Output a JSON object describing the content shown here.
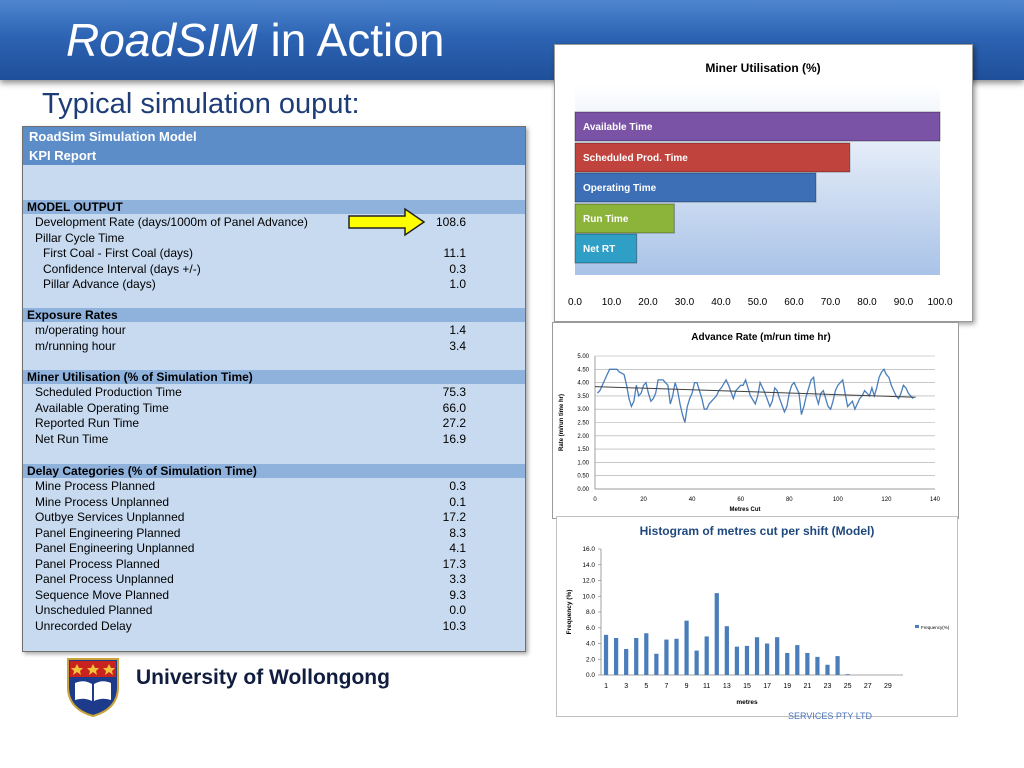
{
  "slide": {
    "title_emph": "RoadSIM",
    "title_rest": " in Action",
    "subtitle": "Typical simulation ouput:",
    "university": "University of Wollongong",
    "footer_note": "SERVICES PTY LTD"
  },
  "kpi": {
    "header1": "RoadSim Simulation Model",
    "header2": "KPI Report",
    "sections": [
      {
        "title": "MODEL OUTPUT",
        "rows": [
          {
            "label": "Development Rate (days/1000m of Panel Advance)",
            "value": "108.6",
            "indent": 1
          },
          {
            "label": "Pillar Cycle Time",
            "value": "",
            "indent": 1
          },
          {
            "label": "First Coal - First Coal (days)",
            "value": "11.1",
            "indent": 2
          },
          {
            "label": "Confidence Interval (days +/-)",
            "value": "0.3",
            "indent": 2
          },
          {
            "label": "Pillar Advance (days)",
            "value": "1.0",
            "indent": 2
          }
        ]
      },
      {
        "title": "Exposure Rates",
        "rows": [
          {
            "label": "m/operating hour",
            "value": "1.4",
            "indent": 1
          },
          {
            "label": "m/running hour",
            "value": "3.4",
            "indent": 1
          }
        ]
      },
      {
        "title": "Miner Utilisation (% of Simulation Time)",
        "rows": [
          {
            "label": "Scheduled Production Time",
            "value": "75.3",
            "indent": 1
          },
          {
            "label": "Available Operating Time",
            "value": "66.0",
            "indent": 1
          },
          {
            "label": "Reported Run Time",
            "value": "27.2",
            "indent": 1
          },
          {
            "label": "Net Run Time",
            "value": "16.9",
            "indent": 1
          }
        ]
      },
      {
        "title": "Delay Categories (% of Simulation Time)",
        "rows": [
          {
            "label": "Mine Process Planned",
            "value": "0.3",
            "indent": 1
          },
          {
            "label": "Mine Process Unplanned",
            "value": "0.1",
            "indent": 1
          },
          {
            "label": "Outbye Services Unplanned",
            "value": "17.2",
            "indent": 1
          },
          {
            "label": "Panel Engineering Planned",
            "value": "8.3",
            "indent": 1
          },
          {
            "label": "Panel Engineering Unplanned",
            "value": "4.1",
            "indent": 1
          },
          {
            "label": "Panel Process Planned",
            "value": "17.3",
            "indent": 1
          },
          {
            "label": "Panel Process Unplanned",
            "value": "3.3",
            "indent": 1
          },
          {
            "label": "Sequence Move Planned",
            "value": "9.3",
            "indent": 1
          },
          {
            "label": "Unscheduled Planned",
            "value": "0.0",
            "indent": 1
          },
          {
            "label": "Unrecorded Delay",
            "value": "10.3",
            "indent": 1
          }
        ]
      }
    ]
  },
  "colors": {
    "title_band": "#2d64b4",
    "kpi_bg": "#c7daf0",
    "kpi_header": "#5d8dc8",
    "kpi_section": "#8fb2dd",
    "arrow": "#ffff00",
    "line_series": "#4a7ebb",
    "trend": "#404040",
    "hist_bar": "#4a7ebb",
    "hist_title": "#1f497d"
  },
  "chart_data": [
    {
      "type": "bar",
      "orientation": "horizontal",
      "title": "Miner Utilisation (%)",
      "categories": [
        "Available Time",
        "Scheduled Prod. Time",
        "Operating Time",
        "Run Time",
        "Net RT"
      ],
      "values": [
        100.0,
        75.3,
        66.0,
        27.2,
        16.9
      ],
      "bar_colors": [
        "#7b53a6",
        "#c0433e",
        "#3d6fb6",
        "#8cb43b",
        "#2f9fc6"
      ],
      "x_ticks": [
        "0.0",
        "10.0",
        "20.0",
        "30.0",
        "40.0",
        "50.0",
        "60.0",
        "70.0",
        "80.0",
        "90.0",
        "100.0"
      ],
      "xlim": [
        0,
        100
      ],
      "xlabel": "",
      "ylabel": ""
    },
    {
      "type": "line",
      "title": "Advance Rate (m/run time hr)",
      "xlabel": "Metres Cut",
      "ylabel": "Rate (m/run time hr)",
      "xlim": [
        0,
        140
      ],
      "ylim": [
        0,
        5
      ],
      "x_ticks": [
        "0",
        "20",
        "40",
        "60",
        "80",
        "100",
        "120",
        "140"
      ],
      "y_ticks": [
        "0.00",
        "0.50",
        "1.00",
        "1.50",
        "2.00",
        "2.50",
        "3.00",
        "3.50",
        "4.00",
        "4.50",
        "5.00"
      ],
      "grid": true,
      "series": [
        {
          "x": [
            1,
            2,
            3,
            5,
            6,
            7,
            9,
            10,
            12,
            13,
            14,
            15,
            16,
            17,
            18,
            19,
            20,
            21,
            22,
            23,
            24,
            25,
            26,
            28,
            30,
            31,
            32,
            33,
            34,
            35,
            36,
            37,
            38,
            39,
            40,
            41,
            42,
            43,
            44,
            45,
            46,
            47,
            48,
            50,
            51,
            52,
            54,
            55,
            57,
            58,
            60,
            61,
            62,
            63,
            64,
            66,
            67,
            68,
            69,
            70,
            72,
            73,
            74,
            75,
            76,
            78,
            79,
            80,
            81,
            82,
            84,
            85,
            86,
            87,
            88,
            89,
            90,
            91,
            92,
            93,
            94,
            95,
            96,
            97,
            98,
            99,
            100,
            101,
            102,
            103,
            104,
            105,
            106,
            107,
            108,
            109,
            110,
            111,
            112,
            113,
            114,
            115,
            116,
            117,
            118,
            119,
            120,
            121,
            122,
            123,
            124,
            125,
            126,
            127,
            128,
            129,
            130,
            131
          ],
          "y": [
            3.6,
            3.7,
            3.9,
            4.3,
            4.5,
            4.5,
            4.5,
            4.4,
            4.3,
            3.9,
            3.4,
            3.1,
            3.3,
            3.9,
            3.5,
            3.6,
            3.9,
            4.0,
            3.6,
            3.3,
            3.4,
            3.6,
            4.1,
            4.1,
            3.9,
            3.2,
            3.5,
            4.0,
            3.7,
            3.2,
            2.8,
            2.5,
            3.1,
            3.4,
            3.6,
            4.0,
            4.0,
            3.7,
            3.4,
            3.0,
            3.0,
            3.2,
            3.3,
            3.5,
            3.7,
            3.8,
            4.1,
            3.9,
            3.4,
            3.7,
            3.9,
            3.9,
            4.1,
            3.8,
            3.5,
            3.2,
            3.5,
            4.0,
            3.8,
            3.6,
            3.1,
            3.3,
            3.8,
            3.7,
            3.4,
            2.9,
            3.1,
            3.6,
            3.9,
            4.0,
            3.6,
            2.8,
            3.1,
            3.5,
            3.8,
            4.1,
            4.2,
            3.5,
            3.2,
            3.6,
            3.7,
            3.4,
            3.1,
            3.0,
            3.3,
            3.7,
            3.9,
            4.0,
            4.1,
            3.6,
            3.1,
            3.2,
            3.3,
            3.0,
            3.2,
            3.4,
            3.5,
            3.7,
            3.6,
            3.5,
            3.8,
            3.5,
            3.8,
            4.2,
            4.4,
            4.5,
            4.3,
            4.2,
            3.9,
            3.7,
            3.5,
            3.4,
            3.6,
            3.9,
            3.8,
            3.6,
            3.5,
            3.4
          ]
        }
      ],
      "trend": {
        "x": [
          0,
          132
        ],
        "y": [
          3.85,
          3.45
        ]
      }
    },
    {
      "type": "bar",
      "title": "Histogram of metres cut per shift (Model)",
      "xlabel": "metres",
      "ylabel": "Frequency (%)",
      "ylim": [
        0,
        16
      ],
      "y_ticks": [
        "0.0",
        "2.0",
        "4.0",
        "6.0",
        "8.0",
        "10.0",
        "12.0",
        "14.0",
        "16.0"
      ],
      "x_ticks": [
        "1",
        "3",
        "5",
        "7",
        "9",
        "11",
        "13",
        "15",
        "17",
        "19",
        "21",
        "23",
        "25",
        "27",
        "29"
      ],
      "categories": [
        "1",
        "2",
        "3",
        "4",
        "5",
        "6",
        "7",
        "8",
        "9",
        "10",
        "11",
        "12",
        "13",
        "14",
        "15",
        "16",
        "17",
        "18",
        "19",
        "20",
        "21",
        "22",
        "23",
        "24",
        "25",
        "26",
        "27",
        "28",
        "29",
        "30"
      ],
      "values": [
        5.1,
        4.7,
        3.3,
        4.7,
        5.3,
        2.7,
        4.5,
        4.6,
        6.9,
        3.1,
        4.9,
        10.4,
        6.2,
        3.6,
        3.7,
        4.8,
        4.0,
        4.8,
        2.8,
        3.8,
        2.8,
        2.3,
        1.3,
        2.4,
        0.1,
        0,
        0,
        0,
        0,
        0
      ],
      "series": [
        {
          "name": "Frequency(%)"
        }
      ],
      "legend": "right"
    }
  ]
}
